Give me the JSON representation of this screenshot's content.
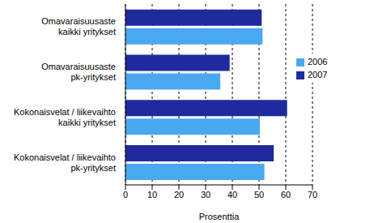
{
  "chart_data": {
    "type": "bar",
    "orientation": "horizontal",
    "categories": [
      "Omavaraisuusaste\nkaikki yritykset",
      "Omavaraisuusaste\npk-yritykset",
      "Kokonaisvelat / liikevaihto\nkaikki yritykset",
      "Kokonaisvelat / liikevaihto\npk-yritykset"
    ],
    "series": [
      {
        "name": "2007",
        "color": "#1f2a9e",
        "values": [
          51,
          39,
          60.5,
          55.5
        ]
      },
      {
        "name": "2006",
        "color": "#4aa8f0",
        "values": [
          51.3,
          35.5,
          50.3,
          52
        ]
      }
    ],
    "x_label": "Prosenttia",
    "xlim": [
      0,
      70
    ],
    "xticks": [
      0,
      10,
      20,
      30,
      40,
      50,
      60,
      70
    ],
    "grid": true,
    "legend": "right"
  }
}
